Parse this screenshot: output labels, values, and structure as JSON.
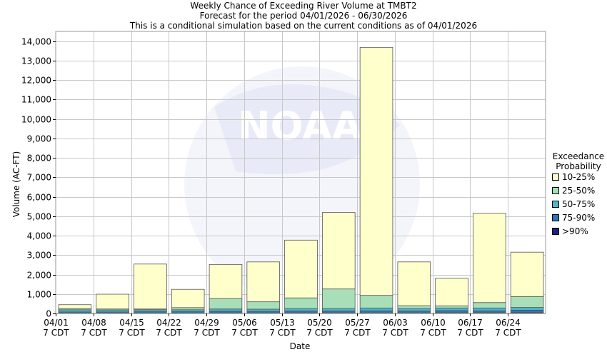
{
  "chart_data": {
    "type": "bar",
    "stacked": true,
    "title": "Weekly Chance of Exceeding River Volume at TMBT2",
    "subtitle_lines": [
      "Forecast for the period 04/01/2026 - 06/30/2026",
      "This is a conditional simulation based on the current conditions as of 04/01/2026"
    ],
    "xlabel": "Date",
    "ylabel": "Volume (AC-FT)",
    "ylim": [
      0,
      14500
    ],
    "yticks": [
      0,
      1000,
      2000,
      3000,
      4000,
      5000,
      6000,
      7000,
      8000,
      9000,
      10000,
      11000,
      12000,
      13000,
      14000
    ],
    "ytick_labels": [
      "0",
      "1,000",
      "2,000",
      "3,000",
      "4,000",
      "5,000",
      "6,000",
      "7,000",
      "8,000",
      "9,000",
      "10,000",
      "11,000",
      "12,000",
      "13,000",
      "14,000"
    ],
    "categories": [
      "04/01\n7 CDT",
      "04/08\n7 CDT",
      "04/15\n7 CDT",
      "04/22\n7 CDT",
      "04/29\n7 CDT",
      "05/06\n7 CDT",
      "05/13\n7 CDT",
      "05/20\n7 CDT",
      "05/27\n7 CDT",
      "06/03\n7 CDT",
      "06/10\n7 CDT",
      "06/17\n7 CDT",
      "06/24\n7 CDT"
    ],
    "grid": true,
    "legend": {
      "title_lines": [
        "Exceedance",
        "Probability"
      ],
      "placement": "right"
    },
    "series": [
      {
        "name": ">90%",
        "color": "#1a237e",
        "values": [
          20,
          20,
          20,
          20,
          30,
          30,
          30,
          30,
          30,
          30,
          40,
          40,
          50
        ]
      },
      {
        "name": "75-90%",
        "color": "#2e75b6",
        "values": [
          60,
          60,
          70,
          70,
          90,
          80,
          100,
          100,
          110,
          100,
          110,
          100,
          120
        ]
      },
      {
        "name": "50-75%",
        "color": "#4db8c8",
        "values": [
          110,
          100,
          100,
          100,
          110,
          110,
          120,
          120,
          140,
          120,
          130,
          140,
          140
        ]
      },
      {
        "name": "25-50%",
        "color": "#a8dfb8",
        "values": [
          60,
          50,
          40,
          110,
          540,
          380,
          550,
          1010,
          650,
          150,
          110,
          280,
          560
        ]
      },
      {
        "name": "10-25%",
        "color": "#ffffcc",
        "values": [
          200,
          760,
          2310,
          940,
          1750,
          2050,
          2970,
          3930,
          12750,
          2250,
          1420,
          4590,
          2280
        ]
      }
    ]
  }
}
